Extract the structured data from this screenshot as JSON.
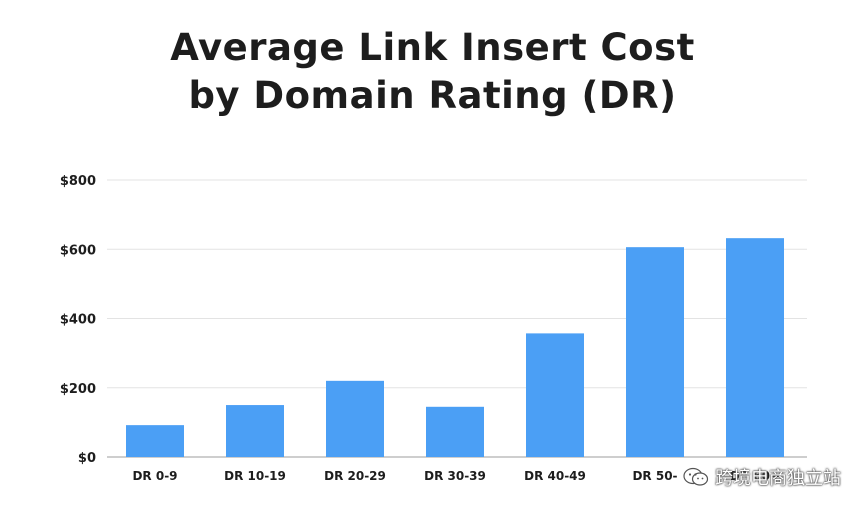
{
  "chart_data": {
    "type": "bar",
    "title_lines": [
      "Average Link Insert Cost",
      "by Domain Rating (DR)"
    ],
    "categories": [
      "DR 0-9",
      "DR 10-19",
      "DR 20-29",
      "DR 30-39",
      "DR 40-49",
      "DR 50-",
      "DR 60+"
    ],
    "values": [
      92,
      150,
      220,
      145,
      357,
      606,
      632
    ],
    "ylim": [
      0,
      800
    ],
    "yticks": [
      0,
      200,
      400,
      600,
      800
    ],
    "ytick_labels": [
      "$0",
      "$200",
      "$400",
      "$600",
      "$800"
    ],
    "xlabel": "",
    "ylabel": "",
    "grid": true,
    "bar_color": "#4b9ff5",
    "grid_color": "#e3e3e3",
    "axis_color": "#bdbdbd"
  },
  "watermark": {
    "text": "跨境电商独立站",
    "icon": "wechat-icon"
  }
}
